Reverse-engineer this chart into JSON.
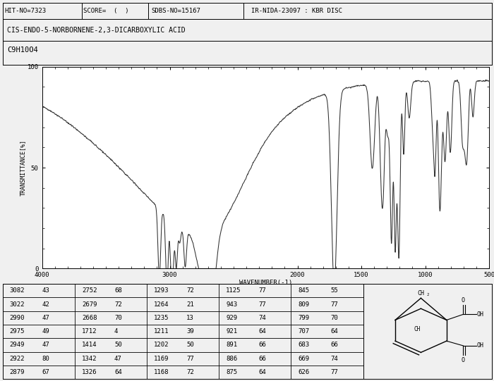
{
  "title_line1": "HIT-NO=7323",
  "title_score": "SCORE=  (  )",
  "title_sdbs": "SDBS-NO=15167",
  "title_ir": "IR-NIDA-23097 : KBR DISC",
  "compound_name": "CIS-ENDO-5-NORBORNENE-2,3-DICARBOXYLIC ACID",
  "formula": "C9H10O4",
  "ylabel": "TRANSMITTANCE[%]",
  "xlabel": "WAVENUMBER(-1)",
  "xmin": 500,
  "xmax": 4000,
  "ymin": 0,
  "ymax": 100,
  "bg_color": "#f0f0f0",
  "plot_bg": "#ffffff",
  "line_color": "#303030",
  "table_data": [
    [
      "3082",
      "43",
      "2752",
      "68",
      "1293",
      "72",
      "1125",
      "77",
      "845",
      "55"
    ],
    [
      "3022",
      "42",
      "2679",
      "72",
      "1264",
      "21",
      "943",
      "77",
      "809",
      "77"
    ],
    [
      "2990",
      "47",
      "2668",
      "70",
      "1235",
      "13",
      "929",
      "74",
      "799",
      "70"
    ],
    [
      "2975",
      "49",
      "1712",
      "4",
      "1211",
      "39",
      "921",
      "64",
      "707",
      "64"
    ],
    [
      "2949",
      "47",
      "1414",
      "50",
      "1202",
      "50",
      "891",
      "66",
      "683",
      "66"
    ],
    [
      "2922",
      "80",
      "1342",
      "47",
      "1169",
      "77",
      "886",
      "66",
      "669",
      "74"
    ],
    [
      "2879",
      "67",
      "1326",
      "64",
      "1168",
      "72",
      "875",
      "64",
      "626",
      "77"
    ]
  ]
}
